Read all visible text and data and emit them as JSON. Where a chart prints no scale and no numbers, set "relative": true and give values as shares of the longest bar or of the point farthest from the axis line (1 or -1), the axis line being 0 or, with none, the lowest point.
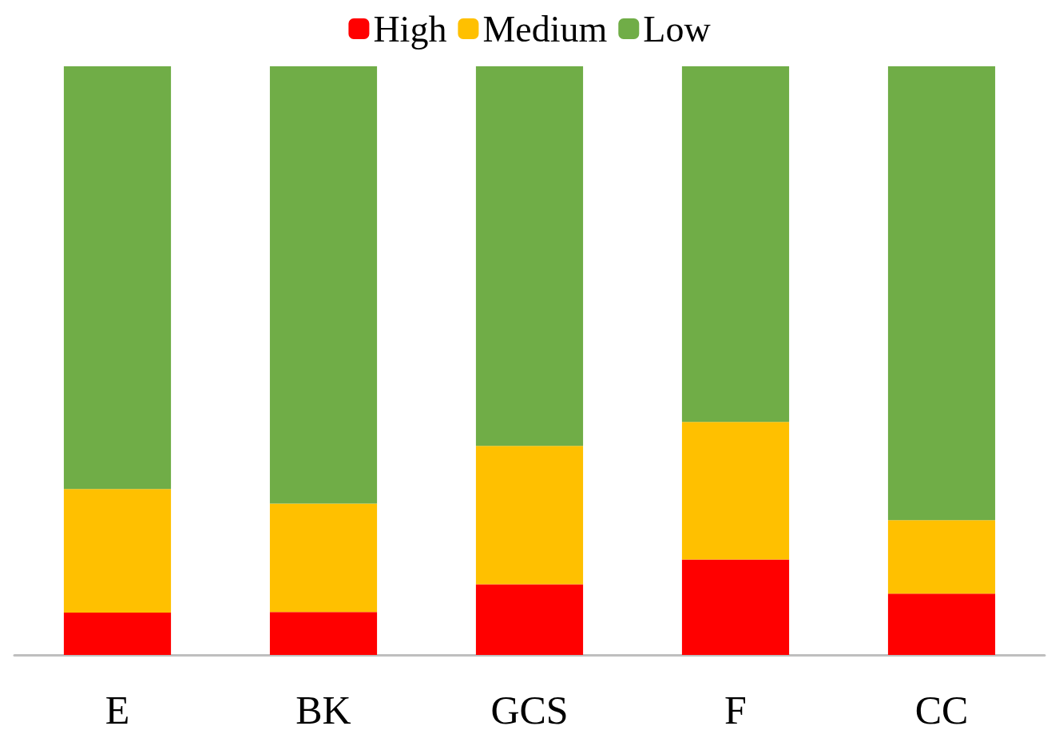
{
  "chart_data": {
    "type": "bar",
    "relative": true,
    "stacked": true,
    "categories": [
      "E",
      "BK",
      "GCS",
      "F",
      "CC"
    ],
    "series": [
      {
        "name": "High",
        "color": "#ff0000",
        "values": [
          0.072,
          0.073,
          0.12,
          0.162,
          0.104
        ]
      },
      {
        "name": "Medium",
        "color": "#ffc000",
        "values": [
          0.21,
          0.184,
          0.235,
          0.234,
          0.125
        ]
      },
      {
        "name": "Low",
        "color": "#70ad47",
        "values": [
          0.718,
          0.743,
          0.645,
          0.604,
          0.771
        ]
      }
    ],
    "legend": "top",
    "grid": false
  }
}
